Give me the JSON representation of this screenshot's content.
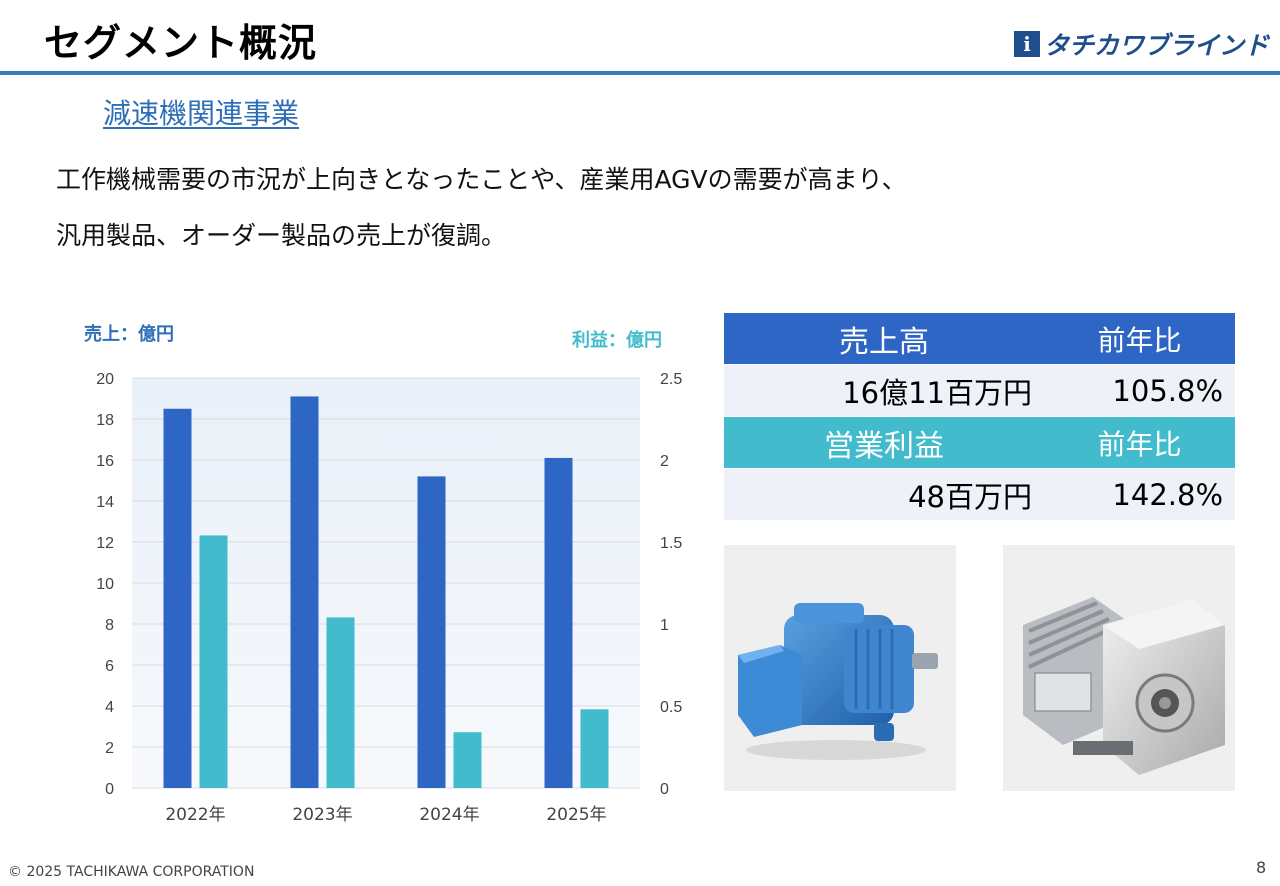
{
  "header": {
    "title": "セグメント概況",
    "logo_mark": "i",
    "logo_text": "タチカワブラインド"
  },
  "section": {
    "title": "減速機関連事業",
    "desc_line1": "工作機械需要の市況が上向きとなったことや、産業用AGVの需要が高まり、",
    "desc_line2": "汎用製品、オーダー製品の売上が復調。"
  },
  "chart_data": {
    "type": "bar",
    "categories": [
      "2022年",
      "2023年",
      "2024年",
      "2025年"
    ],
    "series": [
      {
        "name": "売上",
        "axis": "left",
        "color": "#2d66c4",
        "values": [
          18.5,
          19.1,
          15.2,
          16.1
        ]
      },
      {
        "name": "利益",
        "axis": "right",
        "color": "#42bccd",
        "values": [
          1.54,
          1.04,
          0.34,
          0.48
        ]
      }
    ],
    "ylabel_left": "売上：億円",
    "ylabel_right": "利益：億円",
    "ylim_left": [
      0,
      20
    ],
    "ylim_right": [
      0,
      2.5
    ],
    "yticks_left": [
      "0",
      "2",
      "4",
      "6",
      "8",
      "10",
      "12",
      "14",
      "16",
      "18",
      "20"
    ],
    "yticks_right": [
      "0",
      "0.5",
      "1",
      "1.5",
      "2",
      "2.5"
    ],
    "grid": true
  },
  "summary": {
    "sales_label": "売上高",
    "yoy_label": "前年比",
    "sales_value": "16億11百万円",
    "sales_yoy": "105.8%",
    "profit_label": "営業利益",
    "profit_yoy_label": "前年比",
    "profit_value": "48百万円",
    "profit_yoy": "142.8%",
    "sales_color": "#2d66c4",
    "profit_color": "#42bccd"
  },
  "footer": {
    "copyright": "© 2025 TACHIKAWA CORPORATION",
    "page": "8"
  }
}
